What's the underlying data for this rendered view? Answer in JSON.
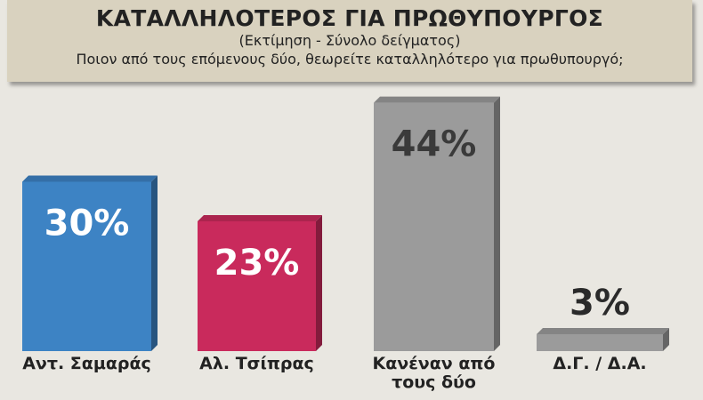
{
  "chart_data": {
    "type": "bar",
    "title": "ΚΑΤΑΛΛΗΛΟΤΕΡΟΣ ΓΙΑ ΠΡΩΘΥΠΟΥΡΓΟΣ",
    "subtitle": "(Εκτίμηση - Σύνολο δείγματος)",
    "question": "Ποιον από τους επόμενους δύο, θεωρείτε καταλληλότερο για πρωθυπουργό;",
    "categories": [
      "Αντ. Σαμαράς",
      "Αλ. Τσίπρας",
      "Κανέναν από τους δύο",
      "Δ.Γ. / Δ.Α."
    ],
    "values": [
      30,
      23,
      44,
      3
    ],
    "value_labels": [
      "30%",
      "23%",
      "44%",
      "3%"
    ],
    "colors": [
      "#3d83c4",
      "#c92a5c",
      "#9b9b9b",
      "#9b9b9b"
    ],
    "label_colors": [
      "#ffffff",
      "#ffffff",
      "#3a3a3a",
      "#2a2a2a"
    ]
  }
}
